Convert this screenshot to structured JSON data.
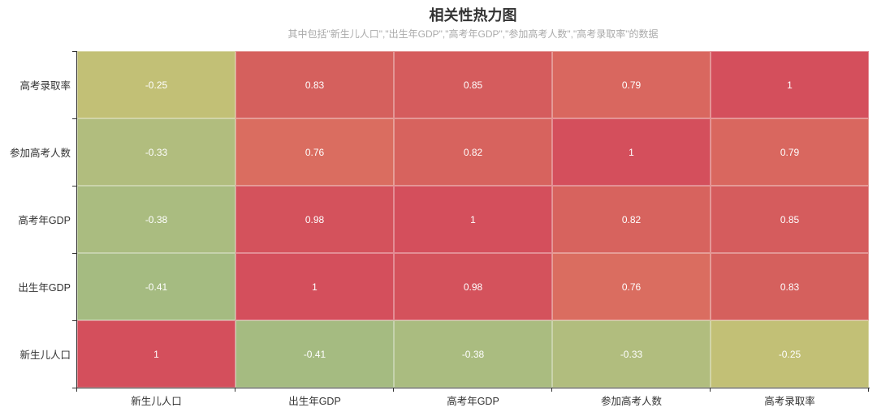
{
  "title": "相关性热力图",
  "subtitle": "其中包括\"新生儿人口\",\"出生年GDP\",\"高考年GDP\",\"参加高考人数\",\"高考录取率\"的数据",
  "palette": {
    "title_color": "#333333",
    "subtitle_color": "#aaaaaa",
    "axis_label_color": "#333333",
    "axis_line_color": "#333333",
    "cell_label_color": "#ffffff"
  },
  "chart_data": {
    "type": "heatmap",
    "title": "相关性热力图",
    "subtitle": "其中包括\"新生儿人口\",\"出生年GDP\",\"高考年GDP\",\"参加高考人数\",\"高考录取率\"的数据",
    "x_categories": [
      "新生儿人口",
      "出生年GDP",
      "高考年GDP",
      "参加高考人数",
      "高考录取率"
    ],
    "y_categories_top_to_bottom": [
      "高考录取率",
      "参加高考人数",
      "高考年GDP",
      "出生年GDP",
      "新生儿人口"
    ],
    "rows": [
      {
        "label": "高考录取率",
        "values": [
          -0.25,
          0.83,
          0.85,
          0.79,
          1
        ]
      },
      {
        "label": "参加高考人数",
        "values": [
          -0.33,
          0.76,
          0.82,
          1,
          0.79
        ]
      },
      {
        "label": "高考年GDP",
        "values": [
          -0.38,
          0.98,
          1,
          0.82,
          0.85
        ]
      },
      {
        "label": "出生年GDP",
        "values": [
          -0.41,
          1,
          0.98,
          0.76,
          0.83
        ]
      },
      {
        "label": "新生儿人口",
        "values": [
          1,
          -0.41,
          -0.38,
          -0.33,
          -0.25
        ]
      }
    ],
    "value_range": [
      -0.41,
      1
    ],
    "legend": "none",
    "gridlines": "cell borders only, axis line with ticks on left and bottom",
    "colors": {
      "1": "#d44f5c",
      "0.98": "#d4525c",
      "0.85": "#d55c5d",
      "0.83": "#d5605d",
      "0.82": "#d7635e",
      "0.79": "#d9675f",
      "0.76": "#da6d60",
      "-0.25": "#c2c076",
      "-0.33": "#b1bd7e",
      "-0.38": "#aabc80",
      "-0.41": "#a5bb81"
    }
  }
}
